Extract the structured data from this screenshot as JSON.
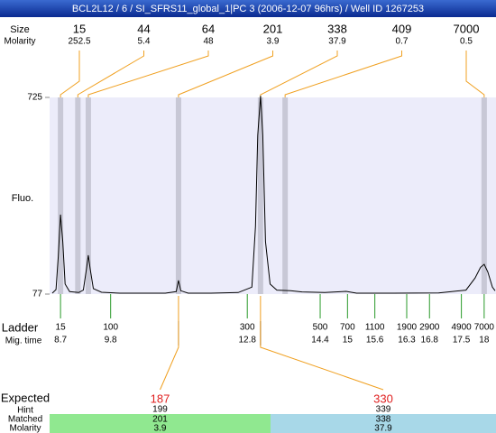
{
  "chart_data": {
    "type": "line",
    "title": "BCL2L12 / 6 / SI_SFRS11_global_1|PC 3 (2006-12-07 96hrs) / Well ID 1267253",
    "ylabel": "Fluo.",
    "ylim": [
      77,
      725
    ],
    "yticks": [
      77,
      725
    ],
    "xlim": [
      8.46,
      18.26
    ],
    "color": "#000000",
    "x": [
      8.52,
      8.6,
      8.65,
      8.7,
      8.75,
      8.8,
      8.9,
      9.1,
      9.2,
      9.27,
      9.31,
      9.35,
      9.42,
      9.6,
      10,
      11,
      11.24,
      11.29,
      11.34,
      11.5,
      12,
      12.6,
      12.9,
      12.98,
      13.03,
      13.09,
      13.14,
      13.2,
      13.3,
      13.45,
      13.75,
      14,
      14.5,
      14.97,
      15.2,
      16,
      17,
      17.6,
      17.8,
      17.92,
      18.0,
      18.08,
      18.18,
      18.24
    ],
    "values": [
      80,
      92,
      200,
      339,
      250,
      110,
      85,
      82,
      90,
      160,
      205,
      160,
      95,
      83,
      80,
      80,
      85,
      122,
      88,
      80,
      80,
      82,
      100,
      300,
      600,
      730,
      600,
      250,
      110,
      90,
      88,
      84,
      82,
      86,
      80,
      80,
      81,
      90,
      130,
      165,
      175,
      150,
      100,
      88
    ],
    "peaks": {
      "size_label": "Size",
      "molarity_label": "Molarity",
      "sizes": [
        15,
        44,
        64,
        201,
        338,
        409,
        7000
      ],
      "molarity": [
        252.5,
        5.4,
        48,
        3.9,
        37.9,
        0.7,
        0.5
      ],
      "times": [
        8.7,
        9.08,
        9.31,
        11.29,
        13.09,
        13.63,
        18.0
      ]
    },
    "ladder": {
      "label": "Ladder",
      "time_label": "Mig. time",
      "sizes": [
        15,
        100,
        300,
        500,
        700,
        1100,
        1900,
        2900,
        4900,
        7000
      ],
      "times": [
        8.7,
        9.8,
        12.8,
        14.4,
        15,
        15.6,
        16.3,
        16.8,
        17.5,
        18
      ]
    },
    "expected": {
      "label": "Expected",
      "hint_label": "Hint",
      "matched_label": "Matched",
      "molarity_label": "Molarity",
      "peak_index": [
        3,
        4
      ],
      "sizes": [
        187,
        330
      ],
      "hint": [
        199,
        339
      ],
      "matched": [
        201,
        338
      ],
      "molarity": [
        3.9,
        37.9
      ]
    }
  }
}
